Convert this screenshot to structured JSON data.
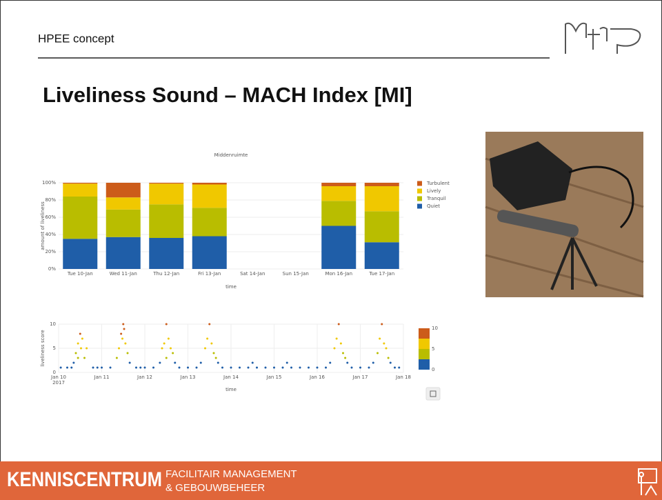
{
  "header": "HPEE concept",
  "title": "Liveliness Sound – MACH Index [MI]",
  "footer": {
    "brand": "KENNISCENTRUM",
    "line1": "FACILITAIR MANAGEMENT",
    "line2": "& GEBOUWBEHEER"
  },
  "chart_data": [
    {
      "type": "bar",
      "stacked": true,
      "title": "Middenruimte",
      "x_label": "time",
      "y_label": "amount of liveliness",
      "categories": [
        "Tue 10-Jan",
        "Wed 11-Jan",
        "Thu 12-Jan",
        "Fri 13-Jan",
        "Sat 14-Jan",
        "Sun 15-Jan",
        "Mon 16-Jan",
        "Tue 17-Jan"
      ],
      "series": [
        {
          "name": "Quiet",
          "color": "#1f5ea8",
          "values": [
            35,
            37,
            36,
            38,
            null,
            null,
            50,
            31
          ]
        },
        {
          "name": "Tranquil",
          "color": "#b9bd00",
          "values": [
            49,
            32,
            39,
            33,
            null,
            null,
            29,
            36
          ]
        },
        {
          "name": "Lively",
          "color": "#f0c800",
          "values": [
            15,
            14,
            24,
            27,
            null,
            null,
            17,
            29
          ]
        },
        {
          "name": "Turbulent",
          "color": "#cc5c1a",
          "values": [
            1,
            17,
            1,
            2,
            null,
            null,
            4,
            4
          ]
        }
      ],
      "ylim": [
        0,
        100
      ],
      "yticks": [
        {
          "value": 0,
          "label": "0%"
        },
        {
          "value": 20,
          "label": "20%"
        },
        {
          "value": 40,
          "label": "40%"
        },
        {
          "value": 60,
          "label": "60%"
        },
        {
          "value": 80,
          "label": "80%"
        },
        {
          "value": 100,
          "label": "100%"
        }
      ],
      "grid": true,
      "legend": "right"
    },
    {
      "type": "scatter",
      "x_label": "time",
      "y_label": "liveliness score",
      "x_year": "2017",
      "x": [
        10.05,
        10.2,
        10.3,
        10.8,
        10.9,
        11.0,
        11.2,
        11.8,
        11.9,
        12.0,
        12.2,
        12.8,
        13.0,
        13.2,
        13.8,
        14.0,
        14.2,
        14.4,
        14.6,
        14.8,
        15.0,
        15.2,
        15.4,
        15.6,
        15.8,
        16.0,
        16.2,
        16.8,
        17.0,
        17.2,
        17.8,
        17.9,
        10.35,
        10.4,
        10.45,
        10.5,
        10.52,
        10.55,
        10.6,
        10.65,
        10.45,
        11.35,
        11.4,
        11.45,
        11.5,
        11.52,
        11.55,
        11.6,
        11.65,
        11.48,
        12.35,
        12.4,
        12.45,
        12.5,
        12.55,
        12.6,
        12.65,
        12.7,
        12.5,
        13.3,
        13.4,
        13.45,
        13.5,
        13.55,
        13.6,
        13.65,
        13.7,
        16.3,
        16.4,
        16.45,
        16.5,
        16.55,
        16.6,
        16.65,
        16.7,
        17.3,
        17.4,
        17.45,
        17.5,
        17.55,
        17.6,
        17.65,
        17.7,
        14.5,
        15.3
      ],
      "values": [
        1,
        1,
        1,
        1,
        1,
        1,
        1,
        1,
        1,
        1,
        1,
        1,
        1,
        1,
        1,
        1,
        1,
        1,
        1,
        1,
        1,
        1,
        1,
        1,
        1,
        1,
        1,
        1,
        1,
        1,
        1,
        1,
        2,
        4,
        6,
        8,
        5,
        7,
        3,
        5,
        3,
        3,
        5,
        8,
        10,
        9,
        6,
        4,
        2,
        7,
        2,
        5,
        6,
        10,
        7,
        5,
        4,
        2,
        3,
        2,
        5,
        7,
        10,
        6,
        4,
        3,
        2,
        2,
        5,
        7,
        10,
        6,
        4,
        3,
        2,
        2,
        4,
        7,
        10,
        6,
        5,
        3,
        2,
        2,
        2
      ],
      "xlim": [
        10,
        18
      ],
      "xticks": [
        {
          "value": 10,
          "label": "Jan 10"
        },
        {
          "value": 11,
          "label": "Jan 11"
        },
        {
          "value": 12,
          "label": "Jan 12"
        },
        {
          "value": 13,
          "label": "Jan 13"
        },
        {
          "value": 14,
          "label": "Jan 14"
        },
        {
          "value": 15,
          "label": "Jan 15"
        },
        {
          "value": 16,
          "label": "Jan 16"
        },
        {
          "value": 17,
          "label": "Jan 17"
        },
        {
          "value": 18,
          "label": "Jan 18"
        }
      ],
      "ylim": [
        0,
        10
      ],
      "yticks": [
        0,
        5,
        10
      ],
      "grid": true,
      "colorscale": [
        {
          "value": 0,
          "color": "#1f5ea8"
        },
        {
          "value": 2.5,
          "color": "#b9bd00"
        },
        {
          "value": 5,
          "color": "#f0c800"
        },
        {
          "value": 7.5,
          "color": "#cc5c1a"
        }
      ],
      "colorbar_ticks": [
        0,
        5,
        10
      ]
    }
  ]
}
